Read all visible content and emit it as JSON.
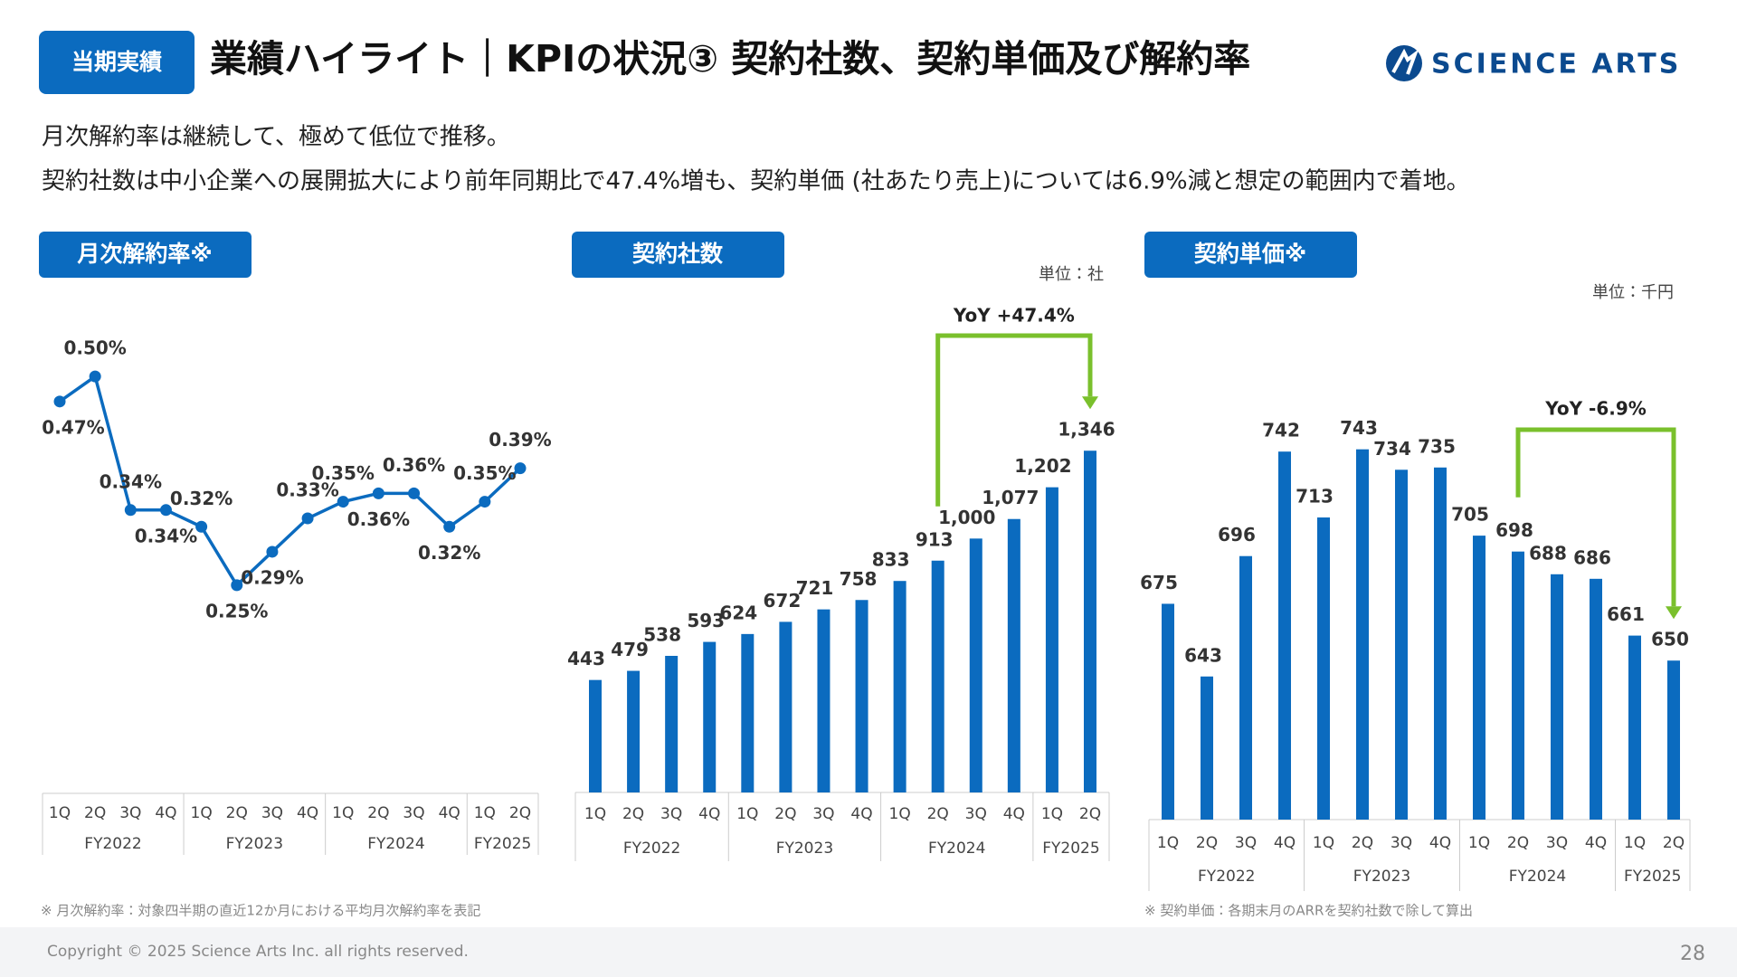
{
  "header": {
    "badge": "当期実績",
    "title": "業績ハイライト｜KPIの状況③ 契約社数、契約単価及び解約率",
    "logo": "SCIENCE ARTS"
  },
  "summary": [
    "月次解約率は継続して、極めて低位で推移。",
    "契約社数は中小企業への展開拡大により前年同期比で47.4%増も、契約単価 (社あたり売上)については6.9%減と想定の範囲内で着地。"
  ],
  "chart_data": [
    {
      "type": "line",
      "title": "月次解約率※",
      "color": "#0b6bbf",
      "categories": [
        "1Q",
        "2Q",
        "3Q",
        "4Q",
        "1Q",
        "2Q",
        "3Q",
        "4Q",
        "1Q",
        "2Q",
        "3Q",
        "4Q",
        "1Q",
        "2Q"
      ],
      "groups": [
        "FY2022",
        "FY2023",
        "FY2024",
        "FY2025"
      ],
      "values": [
        0.47,
        0.5,
        0.34,
        0.34,
        0.32,
        0.25,
        0.29,
        0.33,
        0.35,
        0.36,
        0.36,
        0.32,
        0.35,
        0.39
      ],
      "value_labels": [
        "0.47%",
        "0.50%",
        "0.34%",
        "0.34%",
        "0.32%",
        "0.25%",
        "0.29%",
        "0.33%",
        "0.35%",
        "0.36%",
        "0.36%",
        "0.32%",
        "0.35%",
        "0.39%"
      ],
      "ylim": [
        0.2,
        0.55
      ],
      "footnote": "※ 月次解約率：対象四半期の直近12か月における平均月次解約率を表記"
    },
    {
      "type": "bar",
      "title": "契約社数",
      "color": "#0b6bbf",
      "unit": "単位：社",
      "annotation": "YoY +47.4%",
      "annotation_color": "#7ac02c",
      "categories": [
        "1Q",
        "2Q",
        "3Q",
        "4Q",
        "1Q",
        "2Q",
        "3Q",
        "4Q",
        "1Q",
        "2Q",
        "3Q",
        "4Q",
        "1Q",
        "2Q"
      ],
      "groups": [
        "FY2022",
        "FY2023",
        "FY2024",
        "FY2025"
      ],
      "values": [
        443,
        479,
        538,
        593,
        624,
        672,
        721,
        758,
        833,
        913,
        1000,
        1077,
        1202,
        1346
      ],
      "value_labels": [
        "443",
        "479",
        "538",
        "593",
        "624",
        "672",
        "721",
        "758",
        "833",
        "913",
        "1,000",
        "1,077",
        "1,202",
        "1,346"
      ],
      "ylim": [
        0,
        1500
      ]
    },
    {
      "type": "bar",
      "title": "契約単価※",
      "color": "#0b6bbf",
      "unit": "単位：千円",
      "annotation": "YoY -6.9%",
      "annotation_color": "#7ac02c",
      "categories": [
        "1Q",
        "2Q",
        "3Q",
        "4Q",
        "1Q",
        "2Q",
        "3Q",
        "4Q",
        "1Q",
        "2Q",
        "3Q",
        "4Q",
        "1Q",
        "2Q"
      ],
      "groups": [
        "FY2022",
        "FY2023",
        "FY2024",
        "FY2025"
      ],
      "values": [
        675,
        643,
        696,
        742,
        713,
        743,
        734,
        735,
        705,
        698,
        688,
        686,
        661,
        650
      ],
      "ylim": [
        580,
        760
      ],
      "footnote": "※ 契約単価：各期末月のARRを契約社数で除して算出"
    }
  ],
  "footer": {
    "copyright": "Copyright © 2025 Science Arts Inc. all rights reserved.",
    "page": 28
  }
}
